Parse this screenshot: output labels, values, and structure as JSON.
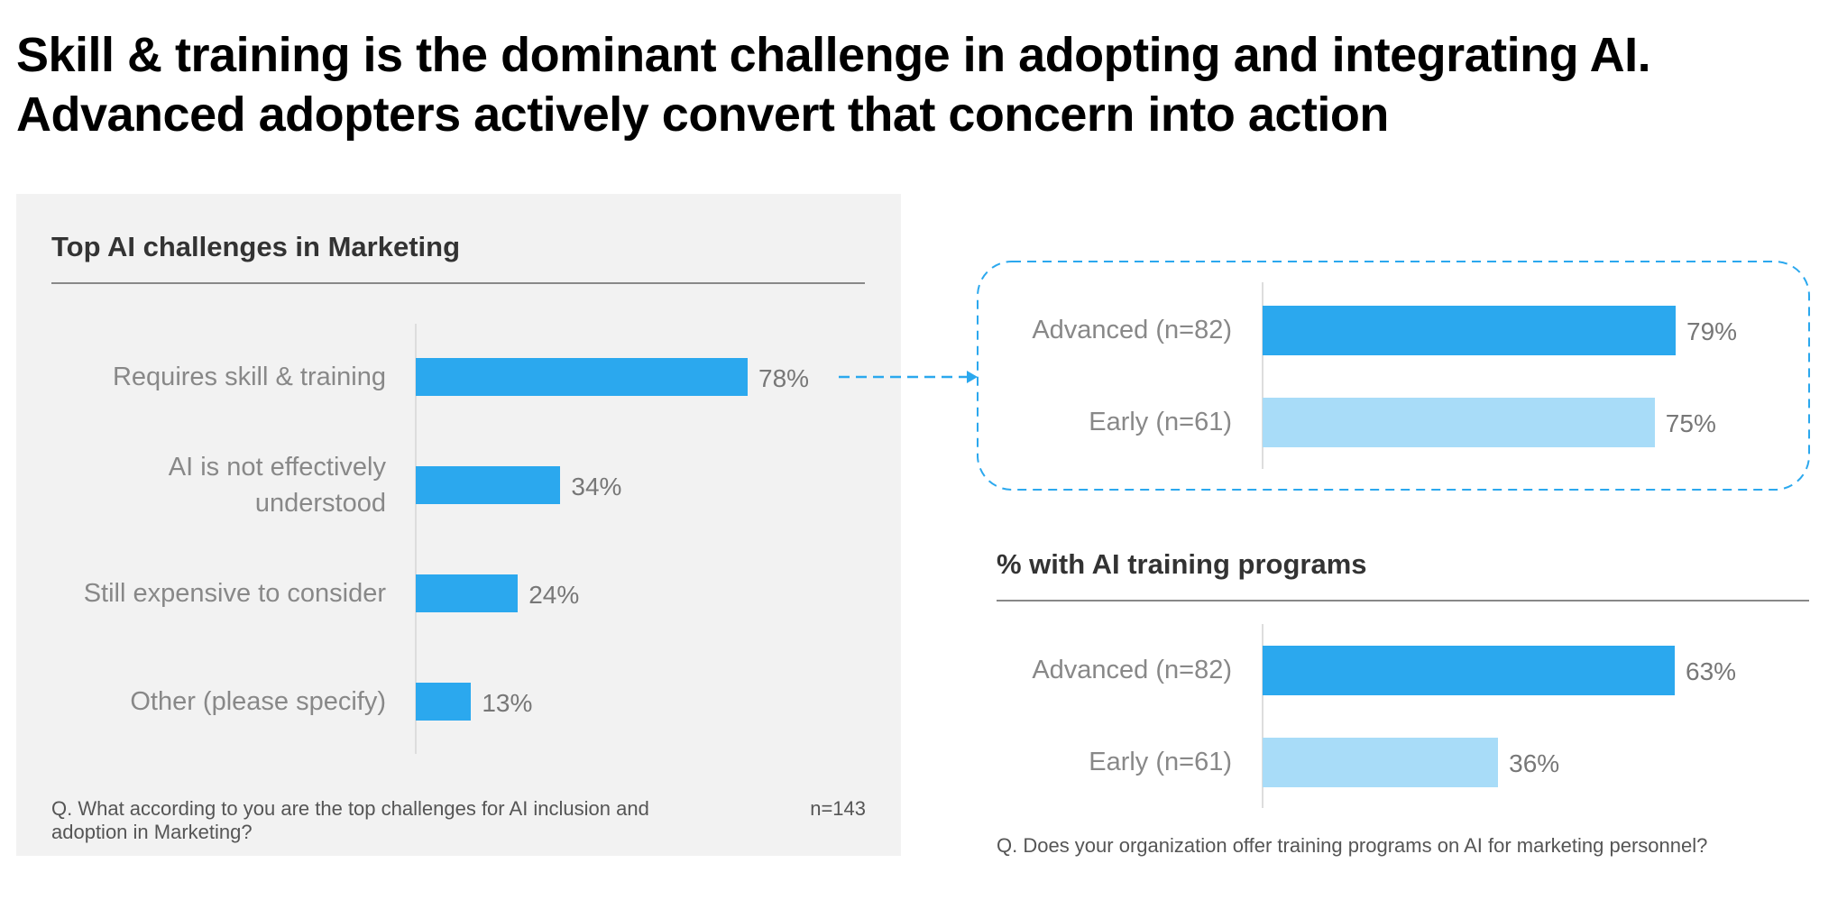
{
  "title": "Skill & training is the dominant challenge in adopting and integrating AI.  Advanced adopters actively convert that concern into action",
  "chart_data": [
    {
      "type": "bar",
      "orientation": "horizontal",
      "title": "Top AI challenges in Marketing",
      "categories": [
        "Requires skill & training",
        "AI is not effectively understood",
        "Still expensive to consider",
        "Other (please specify)"
      ],
      "values": [
        78,
        34,
        24,
        13
      ],
      "value_labels": [
        "78%",
        "34%",
        "24%",
        "13%"
      ],
      "color": "#2ba8ee",
      "note": "Q. What according to you are the top challenges for AI inclusion and adoption in Marketing?",
      "sample_size": "n=143"
    },
    {
      "type": "bar",
      "orientation": "horizontal",
      "categories": [
        "Advanced (n=82)",
        "Early (n=61)"
      ],
      "values": [
        79,
        75
      ],
      "value_labels": [
        "79%",
        "75%"
      ],
      "colors": [
        "#2ba8ee",
        "#a8dcf8"
      ]
    },
    {
      "type": "bar",
      "orientation": "horizontal",
      "title": "% with AI training programs",
      "categories": [
        "Advanced (n=82)",
        "Early (n=61)"
      ],
      "values": [
        63,
        36
      ],
      "value_labels": [
        "63%",
        "36%"
      ],
      "colors": [
        "#2ba8ee",
        "#a8dcf8"
      ],
      "note": "Q. Does your organization offer training programs on AI for marketing personnel?"
    }
  ]
}
